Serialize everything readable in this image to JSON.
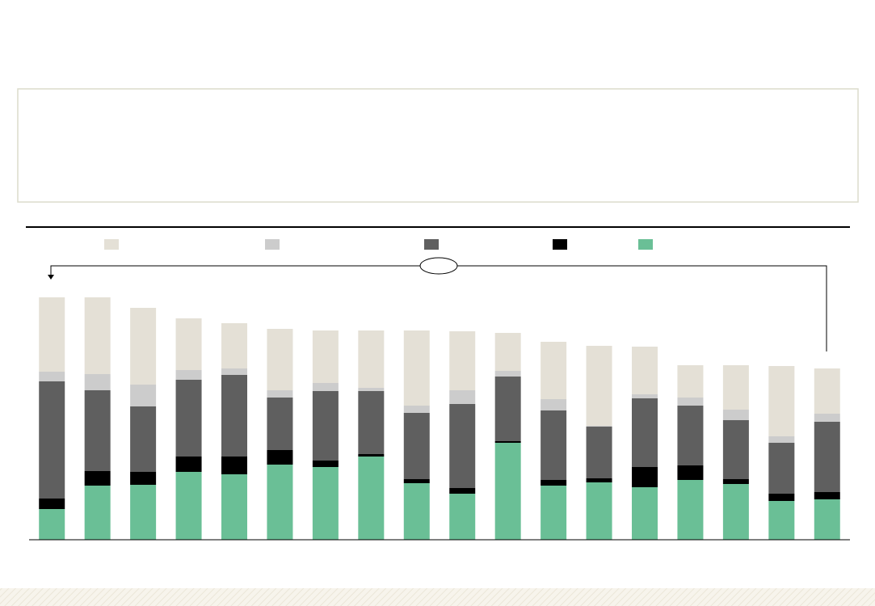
{
  "chart_data": {
    "type": "bar",
    "stacked": true,
    "categories": [
      null,
      null,
      null,
      null,
      null,
      null,
      null,
      null,
      null,
      null,
      null,
      null,
      null,
      null,
      null,
      null,
      null,
      null
    ],
    "ylim": [
      0,
      300
    ],
    "series": [
      {
        "color": "#e4e0d6",
        "values": [
          92,
          95,
          95,
          64,
          56,
          76,
          65,
          71,
          93,
          73,
          47,
          71,
          99,
          59,
          40,
          55,
          87,
          56
        ]
      },
      {
        "color": "#cccccc",
        "values": [
          12,
          20,
          27,
          12,
          8,
          9,
          10,
          4,
          9,
          17,
          7,
          14,
          1,
          5,
          10,
          13,
          8,
          10
        ]
      },
      {
        "color": "#5f5f5f",
        "values": [
          145,
          100,
          81,
          95,
          101,
          65,
          86,
          78,
          82,
          104,
          80,
          86,
          64,
          85,
          74,
          73,
          63,
          87
        ]
      },
      {
        "color": "#000000",
        "values": [
          13,
          18,
          16,
          19,
          22,
          18,
          8,
          3,
          5,
          7,
          2,
          7,
          5,
          25,
          18,
          6,
          9,
          9
        ]
      },
      {
        "color": "#6abf96",
        "values": [
          38,
          67,
          68,
          84,
          81,
          93,
          90,
          103,
          70,
          57,
          120,
          67,
          71,
          65,
          74,
          69,
          48,
          50
        ]
      }
    ]
  }
}
